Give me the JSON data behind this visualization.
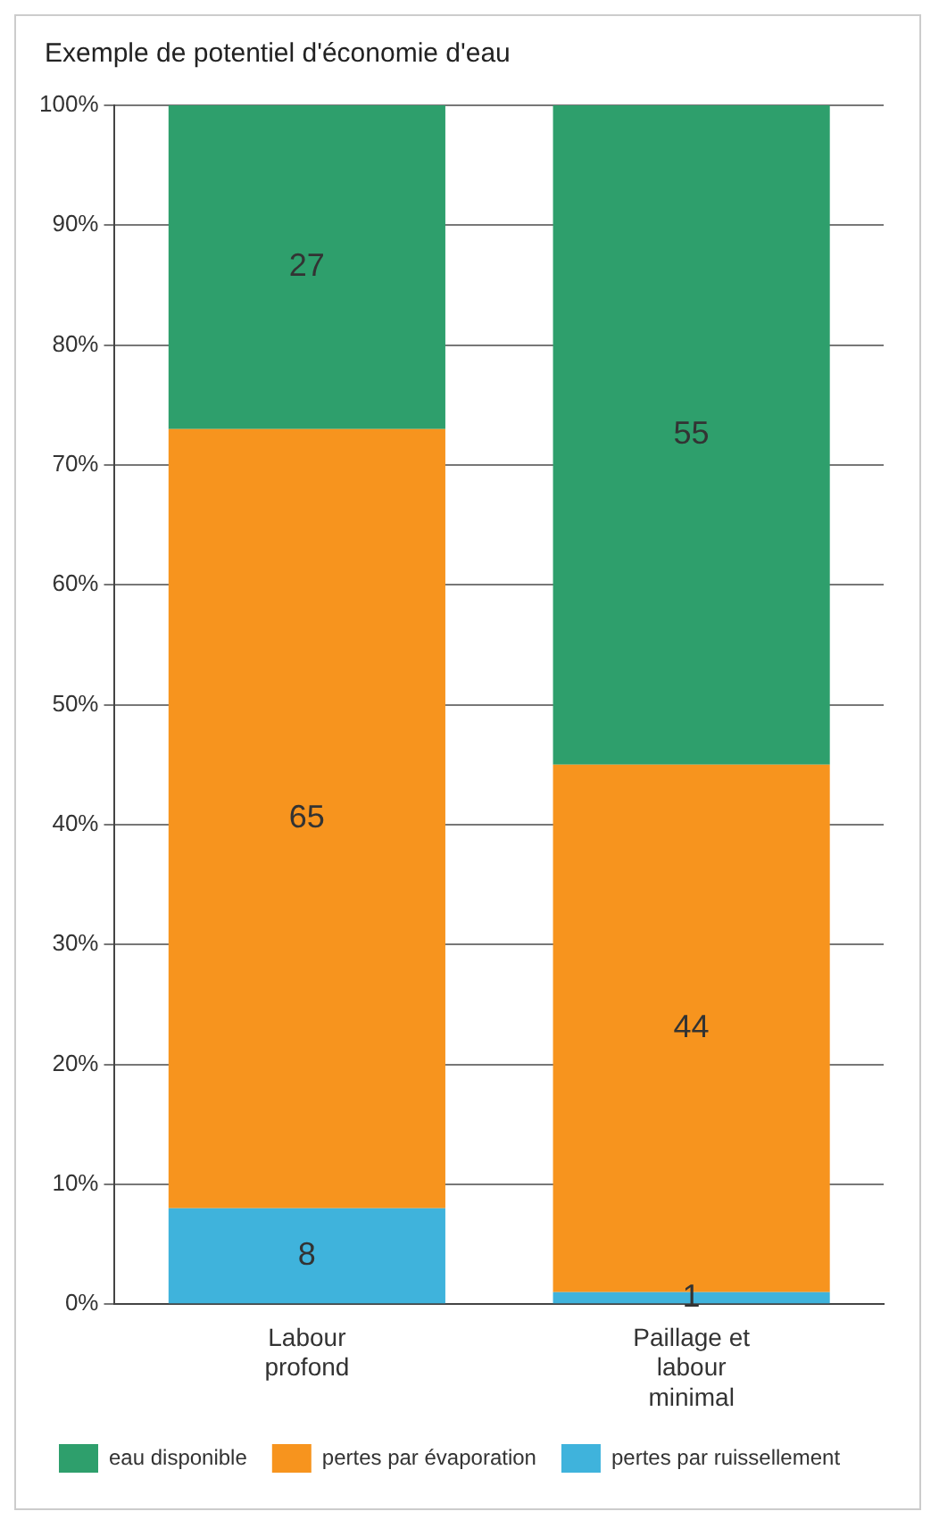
{
  "chart_data": {
    "type": "bar",
    "title": "Exemple de potentiel d'économie d'eau",
    "categories": [
      "Labour profond",
      "Paillage et labour minimal"
    ],
    "stacked": true,
    "series": [
      {
        "name": "pertes par ruissellement",
        "color": "#3fb3dc",
        "values": [
          8,
          1
        ]
      },
      {
        "name": "pertes par évaporation",
        "color": "#f7941e",
        "values": [
          65,
          44
        ]
      },
      {
        "name": "eau disponible",
        "color": "#2e9f6c",
        "values": [
          27,
          55
        ]
      }
    ],
    "ylim": [
      0,
      100
    ],
    "yticks": [
      {
        "value": 0,
        "label": "0%"
      },
      {
        "value": 10,
        "label": "10%"
      },
      {
        "value": 20,
        "label": "20%"
      },
      {
        "value": 30,
        "label": "30%"
      },
      {
        "value": 40,
        "label": "40%"
      },
      {
        "value": 50,
        "label": "50%"
      },
      {
        "value": 60,
        "label": "60%"
      },
      {
        "value": 70,
        "label": "70%"
      },
      {
        "value": 80,
        "label": "80%"
      },
      {
        "value": 90,
        "label": "90%"
      },
      {
        "value": 100,
        "label": "100%"
      }
    ],
    "grid": "y",
    "data_labels": true,
    "legend": "bottom"
  }
}
